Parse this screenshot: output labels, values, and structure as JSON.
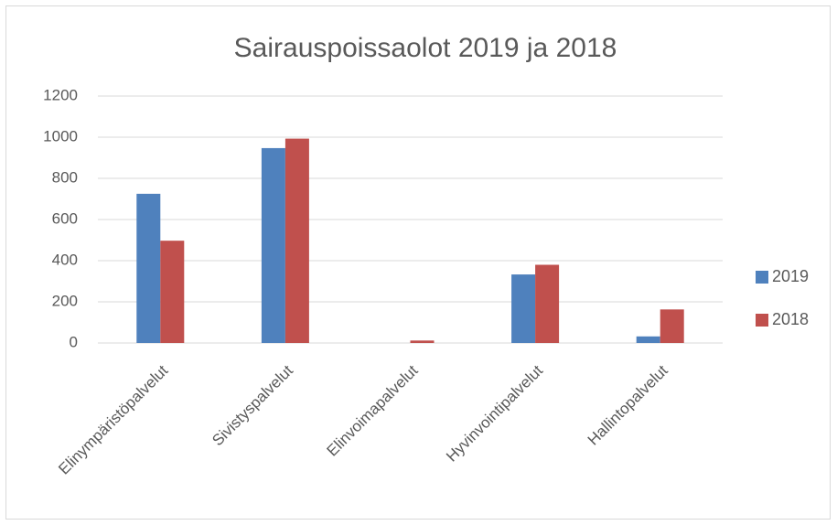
{
  "chart_data": {
    "type": "bar",
    "title": "Sairauspoissaolot 2019 ja 2018",
    "categories": [
      "Elinympäristöpalvelut",
      "Sivistyspalvelut",
      "Elinvoimapalvelut",
      "Hyvinvointipalvelut",
      "Hallintopalvelut"
    ],
    "series": [
      {
        "name": "2019",
        "color": "#4f81bd",
        "values": [
          725,
          947,
          0,
          333,
          32
        ]
      },
      {
        "name": "2018",
        "color": "#c0504d",
        "values": [
          497,
          993,
          12,
          380,
          163
        ]
      }
    ],
    "ylim": [
      0,
      1200
    ],
    "yticks": [
      0,
      200,
      400,
      600,
      800,
      1000,
      1200
    ],
    "grid": true,
    "legend": "right"
  }
}
